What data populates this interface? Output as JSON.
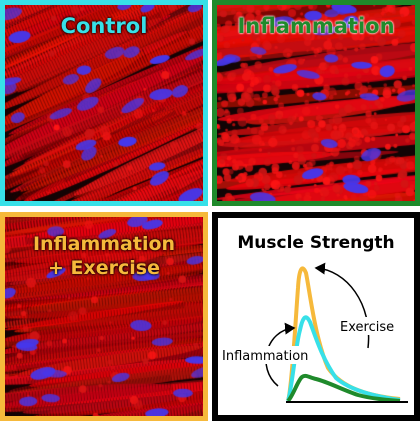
{
  "panels": {
    "control": {
      "title": "Control",
      "color": "#37e0e8"
    },
    "inflammation": {
      "title": "Inflammation",
      "color": "#1f8a2b"
    },
    "exercise": {
      "title_line1": "Inflammation",
      "title_line2": "+ Exercise",
      "color": "#f6b93b"
    }
  },
  "chart": {
    "title": "Muscle Strength",
    "label_inflammation": "Inflammation",
    "label_exercise": "Exercise"
  },
  "colors": {
    "tissue": "#d81414",
    "nuclei": "#3a2fd6",
    "background": "#120405"
  }
}
